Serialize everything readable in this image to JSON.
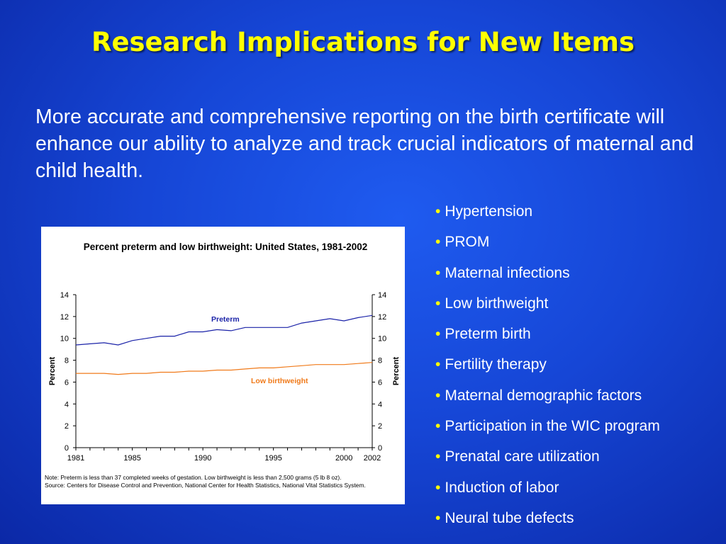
{
  "slide": {
    "title": "Research Implications for New Items",
    "intro": "More accurate and comprehensive reporting on the birth certificate will enhance our ability to analyze and track crucial indicators of maternal and child health.",
    "bullet_marker": "•",
    "bullets": [
      "Hypertension",
      "PROM",
      "Maternal infections",
      "Low birthweight",
      "Preterm birth",
      "Fertility therapy",
      "Maternal demographic factors",
      "Participation in the WIC program",
      "Prenatal care utilization",
      "Induction of labor",
      "Neural tube defects"
    ],
    "colors": {
      "background": "#1646d6",
      "title": "#ffff00",
      "bullet": "#ffff00"
    }
  },
  "chart_data": {
    "type": "line",
    "title": "Percent preterm and low birthweight: United States, 1981-2002",
    "ylabel": "Percent",
    "ylabel_right": "Percent",
    "ylim": [
      0,
      14
    ],
    "yticks": [
      0,
      2,
      4,
      6,
      8,
      10,
      12,
      14
    ],
    "xlim": [
      1981,
      2002
    ],
    "xtick_labels": [
      "1981",
      "1985",
      "1990",
      "1995",
      "2000",
      "2002"
    ],
    "x": [
      1981,
      1982,
      1983,
      1984,
      1985,
      1986,
      1987,
      1988,
      1989,
      1990,
      1991,
      1992,
      1993,
      1994,
      1995,
      1996,
      1997,
      1998,
      1999,
      2000,
      2001,
      2002
    ],
    "series": [
      {
        "name": "Preterm",
        "color": "#1a22a8",
        "values": [
          9.4,
          9.5,
          9.6,
          9.4,
          9.8,
          10.0,
          10.2,
          10.2,
          10.6,
          10.6,
          10.8,
          10.7,
          11.0,
          11.0,
          11.0,
          11.0,
          11.4,
          11.6,
          11.8,
          11.6,
          11.9,
          12.1
        ]
      },
      {
        "name": "Low birthweight",
        "color": "#f07a1a",
        "values": [
          6.8,
          6.8,
          6.8,
          6.7,
          6.8,
          6.8,
          6.9,
          6.9,
          7.0,
          7.0,
          7.1,
          7.1,
          7.2,
          7.3,
          7.3,
          7.4,
          7.5,
          7.6,
          7.6,
          7.6,
          7.7,
          7.8
        ]
      }
    ],
    "grid": false,
    "notes": [
      "Note: Preterm is less than 37 completed weeks of gestation.  Low birthweight is less than 2,500 grams (5 lb 8 oz).",
      "Source: Centers for Disease Control and Prevention, National Center for Health Statistics, National Vital Statistics System."
    ]
  }
}
